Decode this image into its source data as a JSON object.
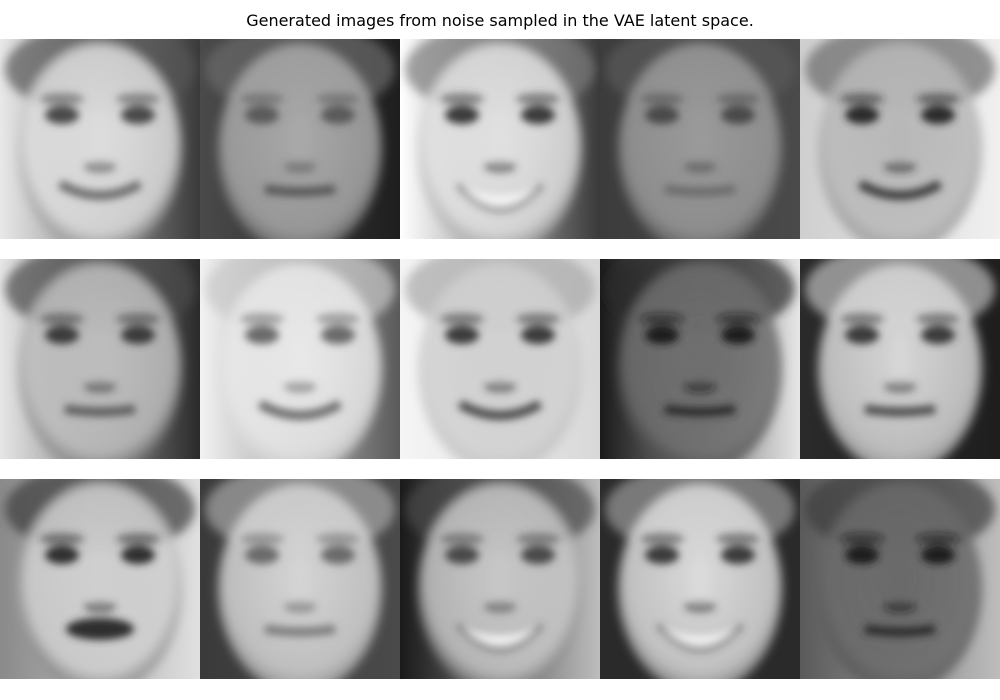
{
  "title": "Generated images from noise sampled in the VAE latent space.",
  "rows": [
    {
      "faces": [
        {
          "name": "face-1-1",
          "bg_left": "#e8e8e8",
          "bg_right": "#3a3a3a",
          "skin": "#dcdcdc",
          "hair": "#555555",
          "eye": "#4a4a4a",
          "mouth": "#6a6a6a",
          "smile": "wide"
        },
        {
          "name": "face-1-2",
          "bg_left": "#4a4a4a",
          "bg_right": "#1e1e1e",
          "skin": "#a8a8a8",
          "hair": "#6b6b6b",
          "eye": "#5a5a5a",
          "mouth": "#555555",
          "smile": "flat"
        },
        {
          "name": "face-1-3",
          "bg_left": "#ffffff",
          "bg_right": "#3a3a3a",
          "skin": "#e0e0e0",
          "hair": "#7b7b7b",
          "eye": "#3a3a3a",
          "mouth": "#f5f5f5",
          "smile": "teeth"
        },
        {
          "name": "face-1-4",
          "bg_left": "#3c3c3c",
          "bg_right": "#4a4a4a",
          "skin": "#9a9a9a",
          "hair": "#5a5a5a",
          "eye": "#4a4a4a",
          "mouth": "#6a6a6a",
          "smile": "flat"
        },
        {
          "name": "face-1-5",
          "bg_left": "#cfcfcf",
          "bg_right": "#f0f0f0",
          "skin": "#b8b8b8",
          "hair": "#6a6a6a",
          "eye": "#2a2a2a",
          "mouth": "#3a3a3a",
          "smile": "wide"
        }
      ]
    },
    {
      "faces": [
        {
          "name": "face-2-1",
          "bg_left": "#e6e6e6",
          "bg_right": "#2a2a2a",
          "skin": "#bdbdbd",
          "hair": "#4a4a4a",
          "eye": "#3a3a3a",
          "mouth": "#5a5a5a",
          "smile": "flat"
        },
        {
          "name": "face-2-2",
          "bg_left": "#f2f2f2",
          "bg_right": "#5a5a5a",
          "skin": "#e8e8e8",
          "hair": "#c8c8c8",
          "eye": "#6a6a6a",
          "mouth": "#6a6a6a",
          "smile": "wide"
        },
        {
          "name": "face-2-3",
          "bg_left": "#f5f5f5",
          "bg_right": "#d8d8d8",
          "skin": "#d0d0d0",
          "hair": "#a8a8a8",
          "eye": "#3a3a3a",
          "mouth": "#4a4a4a",
          "smile": "wide"
        },
        {
          "name": "face-2-4",
          "bg_left": "#1a1a1a",
          "bg_right": "#e6e6e6",
          "skin": "#6e6e6e",
          "hair": "#2a2a2a",
          "eye": "#1a1a1a",
          "mouth": "#2a2a2a",
          "smile": "flat"
        },
        {
          "name": "face-2-5",
          "bg_left": "#2a2a2a",
          "bg_right": "#1e1e1e",
          "skin": "#d6d6d6",
          "hair": "#bdbdbd",
          "eye": "#3a3a3a",
          "mouth": "#4a4a4a",
          "smile": "flat"
        }
      ]
    },
    {
      "faces": [
        {
          "name": "face-3-1",
          "bg_left": "#8a8a8a",
          "bg_right": "#e0e0e0",
          "skin": "#cfcfcf",
          "hair": "#3a3a3a",
          "eye": "#2e2e2e",
          "mouth": "#2e2e2e",
          "smile": "open"
        },
        {
          "name": "face-3-2",
          "bg_left": "#3a3a3a",
          "bg_right": "#4a4a4a",
          "skin": "#d4d4d4",
          "hair": "#a8a8a8",
          "eye": "#6a6a6a",
          "mouth": "#7a7a7a",
          "smile": "flat"
        },
        {
          "name": "face-3-3",
          "bg_left": "#1a1a1a",
          "bg_right": "#bdbdbd",
          "skin": "#c6c6c6",
          "hair": "#4a4a4a",
          "eye": "#4a4a4a",
          "mouth": "#f2f2f2",
          "smile": "teeth"
        },
        {
          "name": "face-3-4",
          "bg_left": "#2a2a2a",
          "bg_right": "#2a2a2a",
          "skin": "#dadada",
          "hair": "#9a9a9a",
          "eye": "#3a3a3a",
          "mouth": "#f0f0f0",
          "smile": "teeth"
        },
        {
          "name": "face-3-5",
          "bg_left": "#5a5a5a",
          "bg_right": "#bdbdbd",
          "skin": "#6a6a6a",
          "hair": "#3a3a3a",
          "eye": "#1a1a1a",
          "mouth": "#2a2a2a",
          "smile": "flat"
        }
      ]
    }
  ]
}
